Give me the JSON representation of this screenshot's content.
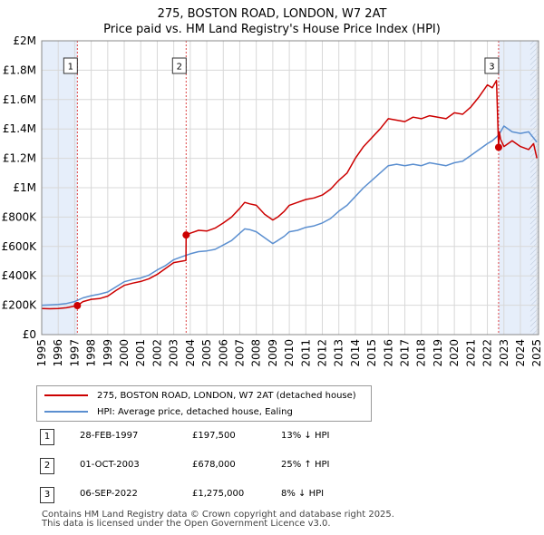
{
  "header": {
    "title_line1": "275, BOSTON ROAD, LONDON, W7 2AT",
    "title_line2": "Price paid vs. HM Land Registry's House Price Index (HPI)"
  },
  "legend": {
    "property_label": "275, BOSTON ROAD, LONDON, W7 2AT (detached house)",
    "hpi_label": "HPI: Average price, detached house, Ealing"
  },
  "transactions": [
    {
      "num": "1",
      "date": "28-FEB-1997",
      "price": "£197,500",
      "hpi_diff": "13% ↓ HPI"
    },
    {
      "num": "2",
      "date": "01-OCT-2003",
      "price": "£678,000",
      "hpi_diff": "25% ↑ HPI"
    },
    {
      "num": "3",
      "date": "06-SEP-2022",
      "price": "£1,275,000",
      "hpi_diff": "8% ↓ HPI"
    }
  ],
  "footer": {
    "line1": "Contains HM Land Registry data © Crown copyright and database right 2025.",
    "line2": "This data is licensed under the Open Government Licence v3.0."
  },
  "colors": {
    "property_line": "#cc0000",
    "hpi_line": "#5b8fd0",
    "shade": "#e6eefa",
    "grid": "#d8d8d8",
    "marker_vline": "#dd4444"
  },
  "chart_data": {
    "type": "line",
    "xlim": [
      1995,
      2025.1
    ],
    "ylim": [
      0,
      2000000
    ],
    "yticks": [
      {
        "value": 0,
        "label": "£0"
      },
      {
        "value": 200000,
        "label": "£200K"
      },
      {
        "value": 400000,
        "label": "£400K"
      },
      {
        "value": 600000,
        "label": "£600K"
      },
      {
        "value": 800000,
        "label": "£800K"
      },
      {
        "value": 1000000,
        "label": "£1M"
      },
      {
        "value": 1200000,
        "label": "£1.2M"
      },
      {
        "value": 1400000,
        "label": "£1.4M"
      },
      {
        "value": 1600000,
        "label": "£1.6M"
      },
      {
        "value": 1800000,
        "label": "£1.8M"
      },
      {
        "value": 2000000,
        "label": "£2M"
      }
    ],
    "xticks": [
      "1995",
      "1996",
      "1997",
      "1998",
      "1999",
      "2000",
      "2001",
      "2002",
      "2003",
      "2004",
      "2005",
      "2006",
      "2007",
      "2008",
      "2009",
      "2010",
      "2011",
      "2012",
      "2013",
      "2014",
      "2015",
      "2016",
      "2017",
      "2018",
      "2019",
      "2020",
      "2021",
      "2022",
      "2023",
      "2024",
      "2025"
    ],
    "shaded_ranges": [
      [
        1995,
        1997.16
      ],
      [
        2022.68,
        2025.1
      ]
    ],
    "hatched_range": [
      2024.6,
      2025.1
    ],
    "sales": [
      {
        "label": "1",
        "x": 1997.16,
        "y": 197500
      },
      {
        "label": "2",
        "x": 2003.75,
        "y": 678000
      },
      {
        "label": "3",
        "x": 2022.68,
        "y": 1275000
      }
    ],
    "series": [
      {
        "name": "275, BOSTON ROAD, LONDON, W7 2AT (detached house)",
        "x": [
          1995,
          1995.5,
          1996,
          1996.5,
          1997.16,
          1997.5,
          1998,
          1998.5,
          1999,
          1999.5,
          2000,
          2000.5,
          2001,
          2001.5,
          2002,
          2002.5,
          2003,
          2003.5,
          2003.74,
          2003.75,
          2004,
          2004.5,
          2005,
          2005.5,
          2006,
          2006.5,
          2007,
          2007.3,
          2007.6,
          2008,
          2008.5,
          2009,
          2009.3,
          2009.7,
          2010,
          2010.5,
          2011,
          2011.5,
          2012,
          2012.5,
          2013,
          2013.5,
          2014,
          2014.5,
          2015,
          2015.5,
          2016,
          2016.5,
          2017,
          2017.5,
          2018,
          2018.5,
          2019,
          2019.5,
          2020,
          2020.5,
          2021,
          2021.5,
          2022,
          2022.3,
          2022.55,
          2022.68,
          2022.72,
          2022.8,
          2023,
          2023.5,
          2024,
          2024.5,
          2024.8,
          2025
        ],
        "values": [
          178000,
          176000,
          178000,
          183000,
          197500,
          225000,
          240000,
          245000,
          262000,
          300000,
          335000,
          350000,
          362000,
          380000,
          410000,
          450000,
          490000,
          500000,
          505000,
          678000,
          690000,
          710000,
          705000,
          725000,
          760000,
          800000,
          860000,
          900000,
          890000,
          880000,
          820000,
          780000,
          800000,
          840000,
          880000,
          900000,
          920000,
          930000,
          950000,
          990000,
          1050000,
          1100000,
          1200000,
          1280000,
          1340000,
          1400000,
          1470000,
          1460000,
          1450000,
          1480000,
          1470000,
          1490000,
          1480000,
          1470000,
          1510000,
          1500000,
          1550000,
          1620000,
          1700000,
          1680000,
          1730000,
          1275000,
          1380000,
          1330000,
          1280000,
          1320000,
          1280000,
          1260000,
          1300000,
          1200000
        ]
      },
      {
        "name": "HPI: Average price, detached house, Ealing",
        "x": [
          1995,
          1995.5,
          1996,
          1996.5,
          1997,
          1997.5,
          1998,
          1998.5,
          1999,
          1999.5,
          2000,
          2000.5,
          2001,
          2001.5,
          2002,
          2002.5,
          2003,
          2003.5,
          2004,
          2004.5,
          2005,
          2005.5,
          2006,
          2006.5,
          2007,
          2007.3,
          2007.6,
          2008,
          2008.5,
          2009,
          2009.3,
          2009.7,
          2010,
          2010.5,
          2011,
          2011.5,
          2012,
          2012.5,
          2013,
          2013.5,
          2014,
          2014.5,
          2015,
          2015.5,
          2016,
          2016.5,
          2017,
          2017.5,
          2018,
          2018.5,
          2019,
          2019.5,
          2020,
          2020.5,
          2021,
          2021.5,
          2022,
          2022.3,
          2022.6,
          2022.8,
          2023,
          2023.5,
          2024,
          2024.5,
          2025
        ],
        "values": [
          200000,
          202000,
          205000,
          212000,
          225000,
          250000,
          265000,
          275000,
          290000,
          325000,
          360000,
          375000,
          385000,
          405000,
          440000,
          470000,
          510000,
          530000,
          550000,
          565000,
          570000,
          580000,
          610000,
          640000,
          690000,
          720000,
          715000,
          700000,
          660000,
          620000,
          640000,
          670000,
          700000,
          710000,
          730000,
          740000,
          760000,
          790000,
          840000,
          880000,
          940000,
          1000000,
          1050000,
          1100000,
          1150000,
          1160000,
          1150000,
          1160000,
          1150000,
          1170000,
          1160000,
          1150000,
          1170000,
          1180000,
          1220000,
          1260000,
          1300000,
          1320000,
          1350000,
          1380000,
          1420000,
          1380000,
          1370000,
          1380000,
          1310000
        ]
      }
    ]
  }
}
